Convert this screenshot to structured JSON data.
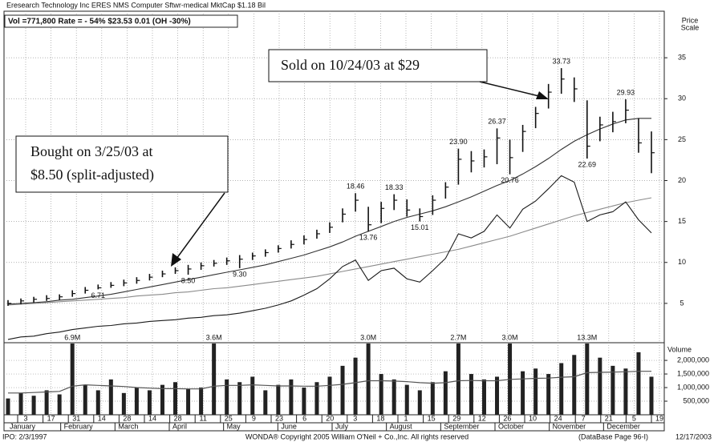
{
  "chart_data": {
    "type": "ohlc",
    "title": "Eresearch Technology Inc  ERES  NMS  Computer Sftwr-medical     MktCap $1.18 Bil",
    "subtitle": "Vol =771,800   Rate = - 54%  $23.53  0.01 (OH -30%)",
    "y_label": [
      "Price",
      "Scale"
    ],
    "ylim": [
      0,
      40
    ],
    "yticks": [
      5,
      10,
      15,
      20,
      25,
      30,
      35
    ],
    "grid": true,
    "price": {
      "color": "#111111",
      "high": [
        5.4,
        5.6,
        5.8,
        6.0,
        6.1,
        6.6,
        7.0,
        7.3,
        7.6,
        7.9,
        8.2,
        8.6,
        9.0,
        9.4,
        9.7,
        10.0,
        10.3,
        10.6,
        10.9,
        11.2,
        11.6,
        12.1,
        12.7,
        13.3,
        14.0,
        14.9,
        16.6,
        18.46,
        16.8,
        17.4,
        18.33,
        17.7,
        16.6,
        18.2,
        19.8,
        23.9,
        23.6,
        23.8,
        26.37,
        25.0,
        26.8,
        29.0,
        31.8,
        33.73,
        32.6,
        29.8,
        27.8,
        28.4,
        29.93,
        27.6,
        26.0
      ],
      "low": [
        4.7,
        4.9,
        5.1,
        5.3,
        5.4,
        5.8,
        6.2,
        6.71,
        6.9,
        7.1,
        7.4,
        7.8,
        8.2,
        8.6,
        8.5,
        9.1,
        9.5,
        9.7,
        9.3,
        10.3,
        10.7,
        11.2,
        11.7,
        12.2,
        12.9,
        13.6,
        14.9,
        16.2,
        13.76,
        14.8,
        16.4,
        15.6,
        15.01,
        15.8,
        17.8,
        19.5,
        21.0,
        21.6,
        22.0,
        20.76,
        23.5,
        26.4,
        28.8,
        30.6,
        29.6,
        22.69,
        24.8,
        25.9,
        27.0,
        23.4,
        20.9
      ],
      "close": [
        5.0,
        5.3,
        5.5,
        5.6,
        5.8,
        6.2,
        6.6,
        6.9,
        7.2,
        7.5,
        7.8,
        8.2,
        8.6,
        9.0,
        9.2,
        9.6,
        9.9,
        10.2,
        10.4,
        10.8,
        11.2,
        11.7,
        12.2,
        12.8,
        13.5,
        14.3,
        15.9,
        17.6,
        14.6,
        16.6,
        17.6,
        16.4,
        15.6,
        17.6,
        19.2,
        22.6,
        22.4,
        22.9,
        25.2,
        22.8,
        26.0,
        28.2,
        30.8,
        32.4,
        31.2,
        24.2,
        26.8,
        27.2,
        28.6,
        24.6,
        23.4
      ],
      "high_labels": [
        null,
        null,
        null,
        null,
        null,
        null,
        null,
        null,
        null,
        null,
        null,
        null,
        null,
        null,
        null,
        null,
        null,
        null,
        null,
        null,
        null,
        null,
        null,
        null,
        null,
        null,
        null,
        "18.46",
        null,
        null,
        "18.33",
        null,
        null,
        null,
        null,
        "23.90",
        null,
        null,
        "26.37",
        null,
        null,
        null,
        null,
        "33.73",
        null,
        null,
        null,
        null,
        "29.93",
        null,
        null
      ],
      "low_labels": [
        null,
        null,
        null,
        null,
        null,
        null,
        null,
        "6.71",
        null,
        null,
        null,
        null,
        null,
        null,
        "8.50",
        null,
        null,
        null,
        "9.30",
        null,
        null,
        null,
        null,
        null,
        null,
        null,
        null,
        null,
        "13.76",
        null,
        null,
        null,
        "15.01",
        null,
        null,
        null,
        null,
        null,
        null,
        "20.76",
        null,
        null,
        null,
        null,
        null,
        "22.69",
        null,
        null,
        null,
        null,
        null
      ]
    },
    "lines": [
      {
        "color": "#333333",
        "values": [
          4.9,
          5.0,
          5.1,
          5.2,
          5.4,
          5.5,
          5.7,
          5.9,
          6.1,
          6.4,
          6.7,
          7.0,
          7.3,
          7.6,
          7.9,
          8.2,
          8.5,
          8.8,
          9.1,
          9.4,
          9.7,
          10.1,
          10.5,
          10.9,
          11.4,
          11.9,
          12.5,
          13.2,
          13.8,
          14.4,
          15.0,
          15.5,
          15.9,
          16.3,
          16.8,
          17.4,
          18.0,
          18.7,
          19.4,
          20.0,
          20.8,
          21.7,
          22.7,
          23.8,
          24.8,
          25.6,
          26.3,
          26.9,
          27.4,
          27.6,
          27.6
        ]
      },
      {
        "color": "#8a8a8a",
        "values": [
          4.8,
          4.9,
          5.0,
          5.1,
          5.2,
          5.3,
          5.4,
          5.5,
          5.6,
          5.7,
          5.9,
          6.0,
          6.1,
          6.3,
          6.4,
          6.6,
          6.8,
          6.9,
          7.1,
          7.3,
          7.5,
          7.7,
          7.9,
          8.1,
          8.3,
          8.6,
          8.9,
          9.2,
          9.5,
          9.8,
          10.1,
          10.4,
          10.7,
          11.0,
          11.3,
          11.6,
          12.0,
          12.4,
          12.8,
          13.2,
          13.7,
          14.2,
          14.7,
          15.2,
          15.7,
          16.1,
          16.5,
          16.9,
          17.3,
          17.6,
          17.9
        ]
      },
      {
        "color": "#1a1a1a",
        "values": [
          0.6,
          0.9,
          1.0,
          1.3,
          1.5,
          1.8,
          2.0,
          2.2,
          2.3,
          2.5,
          2.6,
          2.8,
          2.9,
          3.0,
          3.2,
          3.3,
          3.5,
          3.6,
          3.8,
          4.1,
          4.4,
          4.8,
          5.3,
          6.0,
          6.8,
          8.0,
          9.5,
          10.3,
          7.8,
          9.0,
          9.3,
          8.0,
          7.6,
          9.0,
          10.5,
          13.5,
          13.0,
          13.8,
          15.8,
          14.2,
          16.5,
          17.5,
          19.0,
          20.6,
          19.8,
          15.0,
          15.8,
          16.2,
          17.4,
          15.2,
          13.6
        ]
      }
    ],
    "volume": {
      "label": "Volume",
      "color": "#222222",
      "ylim": [
        0,
        2650000
      ],
      "yticks": [
        {
          "value": 2000000,
          "label": "2,000,000"
        },
        {
          "value": 1500000,
          "label": "1,500,000"
        },
        {
          "value": 1000000,
          "label": "1,000,000"
        },
        {
          "value": 500000,
          "label": "500,000"
        }
      ],
      "values": [
        600000,
        800000,
        700000,
        900000,
        750000,
        6900000,
        1100000,
        900000,
        1300000,
        800000,
        1000000,
        900000,
        1100000,
        1200000,
        950000,
        1000000,
        3600000,
        1300000,
        1200000,
        1400000,
        900000,
        1100000,
        1300000,
        1000000,
        1200000,
        1400000,
        1800000,
        2100000,
        3000000,
        1500000,
        1300000,
        1100000,
        900000,
        1200000,
        1600000,
        2700000,
        1500000,
        1300000,
        1400000,
        3000000,
        1600000,
        1700000,
        1500000,
        1900000,
        2200000,
        13300000,
        2100000,
        1800000,
        1700000,
        2300000,
        1400000
      ],
      "value_labels": [
        null,
        null,
        null,
        null,
        null,
        "6.9M",
        null,
        null,
        null,
        null,
        null,
        null,
        null,
        null,
        null,
        null,
        "3.6M",
        null,
        null,
        null,
        null,
        null,
        null,
        null,
        null,
        null,
        null,
        null,
        "3.0M",
        null,
        null,
        null,
        null,
        null,
        null,
        "2.7M",
        null,
        null,
        null,
        "3.0M",
        null,
        null,
        null,
        null,
        null,
        "13.3M",
        null,
        null,
        null,
        null,
        null
      ],
      "average": [
        800000,
        800000,
        820000,
        840000,
        860000,
        1050000,
        1100000,
        1080000,
        1060000,
        1040000,
        1000000,
        980000,
        960000,
        960000,
        950000,
        950000,
        1050000,
        1080000,
        1080000,
        1100000,
        1080000,
        1060000,
        1060000,
        1050000,
        1050000,
        1080000,
        1120000,
        1180000,
        1250000,
        1250000,
        1240000,
        1220000,
        1180000,
        1160000,
        1180000,
        1250000,
        1260000,
        1250000,
        1250000,
        1300000,
        1320000,
        1340000,
        1350000,
        1380000,
        1400000,
        1550000,
        1560000,
        1570000,
        1580000,
        1600000,
        1600000
      ]
    },
    "x_labels": [
      "3",
      "17",
      "31",
      "14",
      "28",
      "14",
      "28",
      "11",
      "25",
      "9",
      "23",
      "6",
      "20",
      "3",
      "18",
      "1",
      "15",
      "29",
      "12",
      "26",
      "10",
      "24",
      "7",
      "21",
      "5",
      "19"
    ],
    "months": [
      "January",
      "February",
      "March",
      "April",
      "May",
      "June",
      "July",
      "August",
      "September",
      "October",
      "November",
      "December"
    ],
    "annotations": [
      [
        "Sold on 10/24/03 at $29"
      ],
      [
        "Bought on 3/25/03 at",
        "$8.50 (split-adjusted)"
      ]
    ],
    "footer": {
      "left": "IPO: 2/3/1997",
      "center": "WONDA® Copyright 2005 William O'Neil + Co.,Inc. All rights reserved",
      "right": "(DataBase Page 96-I)",
      "date": "12/17/2003"
    }
  }
}
